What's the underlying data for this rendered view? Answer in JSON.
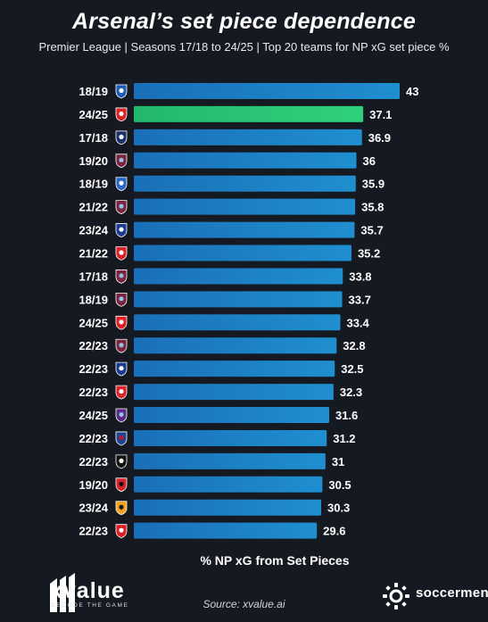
{
  "header": {
    "title": "Arsenal’s set piece dependence",
    "subtitle": "Premier League | Seasons 17/18 to 24/25 | Top 20 teams for NP xG set piece %"
  },
  "chart_data": {
    "type": "bar",
    "orientation": "horizontal",
    "title": "Arsenal’s set piece dependence",
    "subtitle": "Premier League | Seasons 17/18 to 24/25 | Top 20 teams for NP xG set piece %",
    "xlabel": "% NP xG from Set Pieces",
    "ylabel": "",
    "xlim": [
      0,
      43
    ],
    "grid": false,
    "colors": {
      "default": "#1f8fd0",
      "highlight": "#2fd07d"
    },
    "bars": [
      {
        "season": "18/19",
        "club_icon": "cardiff-crest-icon",
        "value": 43,
        "highlight": false
      },
      {
        "season": "24/25",
        "club_icon": "arsenal-crest-icon",
        "value": 37.1,
        "highlight": true
      },
      {
        "season": "17/18",
        "club_icon": "west-brom-crest-icon",
        "value": 36.9,
        "highlight": false
      },
      {
        "season": "19/20",
        "club_icon": "burnley-crest-icon",
        "value": 36,
        "highlight": false
      },
      {
        "season": "18/19",
        "club_icon": "brighton-crest-icon",
        "value": 35.9,
        "highlight": false
      },
      {
        "season": "21/22",
        "club_icon": "burnley-crest-icon",
        "value": 35.8,
        "highlight": false
      },
      {
        "season": "23/24",
        "club_icon": "everton-crest-icon",
        "value": 35.7,
        "highlight": false
      },
      {
        "season": "21/22",
        "club_icon": "brentford-crest-icon",
        "value": 35.2,
        "highlight": false
      },
      {
        "season": "17/18",
        "club_icon": "burnley-crest-icon",
        "value": 33.8,
        "highlight": false
      },
      {
        "season": "18/19",
        "club_icon": "burnley-crest-icon",
        "value": 33.7,
        "highlight": false
      },
      {
        "season": "24/25",
        "club_icon": "nottingham-forest-crest-icon",
        "value": 33.4,
        "highlight": false
      },
      {
        "season": "22/23",
        "club_icon": "west-ham-crest-icon",
        "value": 32.8,
        "highlight": false
      },
      {
        "season": "22/23",
        "club_icon": "everton-crest-icon",
        "value": 32.5,
        "highlight": false
      },
      {
        "season": "22/23",
        "club_icon": "brentford-crest-icon",
        "value": 32.3,
        "highlight": false
      },
      {
        "season": "24/25",
        "club_icon": "aston-villa-crest-icon",
        "value": 31.6,
        "highlight": false
      },
      {
        "season": "22/23",
        "club_icon": "crystal-palace-crest-icon",
        "value": 31.2,
        "highlight": false
      },
      {
        "season": "22/23",
        "club_icon": "newcastle-crest-icon",
        "value": 31,
        "highlight": false
      },
      {
        "season": "19/20",
        "club_icon": "bournemouth-crest-icon",
        "value": 30.5,
        "highlight": false
      },
      {
        "season": "23/24",
        "club_icon": "wolves-crest-icon",
        "value": 30.3,
        "highlight": false
      },
      {
        "season": "22/23",
        "club_icon": "nottingham-forest-crest-icon",
        "value": 29.6,
        "highlight": false
      }
    ],
    "value_labels": [
      "43",
      "37.1",
      "36.9",
      "36",
      "35.9",
      "35.8",
      "35.7",
      "35.2",
      "33.8",
      "33.7",
      "33.4",
      "32.8",
      "32.5",
      "32.3",
      "31.6",
      "31.2",
      "31",
      "30.5",
      "30.3",
      "29.6"
    ]
  },
  "footer": {
    "source": "Source: xvalue.ai",
    "xvalue_name": "xvalue",
    "xvalue_tagline": "DECODE THE GAME",
    "soccerment_name": "soccerment"
  }
}
